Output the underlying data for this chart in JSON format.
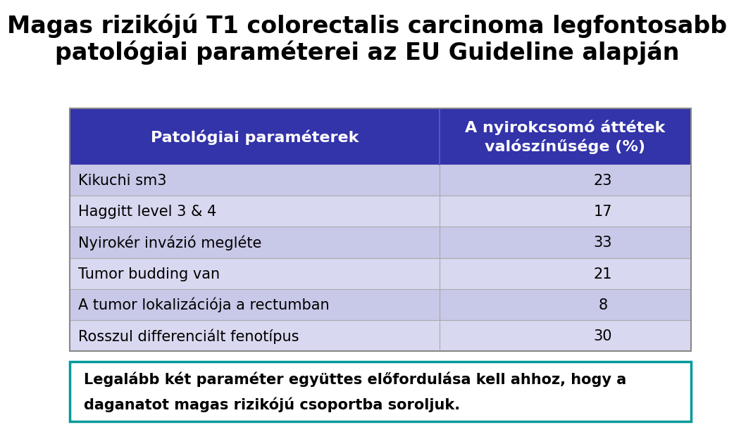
{
  "title_line1": "Magas rizikójú T1 colorectalis carcinoma legfontosabb",
  "title_line2": "patológiai paraméterei az EU Guideline alapján",
  "header_col1": "Patológiai paraméterek",
  "header_col2": "A nyirokcsomó áttétek\nvalószínűsége (%)",
  "rows": [
    [
      "Kikuchi sm3",
      "23"
    ],
    [
      "Haggitt level 3 & 4",
      "17"
    ],
    [
      "Nyirokér invázió megléte",
      "33"
    ],
    [
      "Tumor budding van",
      "21"
    ],
    [
      "A tumor lokalizációja a rectumban",
      "8"
    ],
    [
      "Rosszul differenciált fenotípus",
      "30"
    ]
  ],
  "footer_line1": "Legalább két paraméter együttes előfordulása kell ahhoz, hogy a",
  "footer_line2": "daganatot magas rizikójú csoportba soroljuk.",
  "header_bg": "#3333AA",
  "header_text_color": "#FFFFFF",
  "row_odd_bg": "#C8C8E8",
  "row_even_bg": "#D8D8F0",
  "row_text_color": "#000000",
  "footer_border_color": "#009999",
  "footer_bg": "#FFFFFF",
  "bg_color": "#FFFFFF",
  "title_fontsize": 24,
  "header_fontsize": 16,
  "row_fontsize": 15,
  "footer_fontsize": 15,
  "col_split": 0.595
}
